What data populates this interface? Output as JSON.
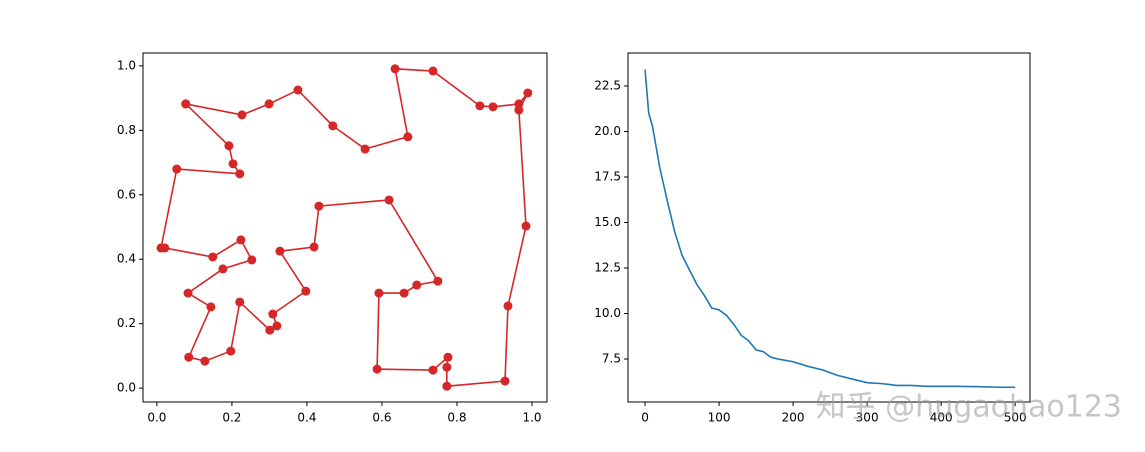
{
  "chart_data": [
    {
      "type": "line",
      "marker": true,
      "x": [
        0.077,
        0.227,
        0.299,
        0.376,
        0.469,
        0.555,
        0.669,
        0.635,
        0.736,
        0.861,
        0.896,
        0.965,
        0.989,
        0.965,
        0.984,
        0.936,
        0.928,
        0.773,
        0.773,
        0.776,
        0.736,
        0.587,
        0.592,
        0.659,
        0.693,
        0.749,
        0.619,
        0.432,
        0.419,
        0.328,
        0.397,
        0.309,
        0.32,
        0.301,
        0.221,
        0.197,
        0.128,
        0.085,
        0.144,
        0.083,
        0.176,
        0.253,
        0.224,
        0.149,
        0.021,
        0.011,
        0.053,
        0.221,
        0.203,
        0.192,
        0.077
      ],
      "series": [
        {
          "color": "#d62728",
          "values": [
            0.882,
            0.848,
            0.882,
            0.925,
            0.814,
            0.742,
            0.78,
            0.991,
            0.984,
            0.876,
            0.873,
            0.882,
            0.916,
            0.863,
            0.503,
            0.255,
            0.022,
            0.006,
            0.065,
            0.096,
            0.056,
            0.059,
            0.295,
            0.295,
            0.32,
            0.332,
            0.584,
            0.565,
            0.438,
            0.425,
            0.301,
            0.23,
            0.193,
            0.18,
            0.267,
            0.115,
            0.084,
            0.096,
            0.252,
            0.295,
            0.37,
            0.398,
            0.46,
            0.407,
            0.435,
            0.435,
            0.68,
            0.665,
            0.696,
            0.752,
            0.882
          ]
        }
      ],
      "xlim": [
        -0.037,
        1.04
      ],
      "ylim": [
        -0.043,
        1.04
      ],
      "xticks": [
        {
          "value": 0,
          "label": "0.0"
        },
        0.2,
        0.4,
        0.6,
        0.8,
        {
          "value": 1,
          "label": "1.0"
        }
      ],
      "yticks": [
        {
          "value": 0,
          "label": "0.0"
        },
        0.2,
        0.4,
        0.6,
        0.8,
        {
          "value": 1,
          "label": "1.0"
        }
      ]
    },
    {
      "type": "line",
      "marker": false,
      "x": [
        0,
        5,
        10,
        20,
        30,
        40,
        50,
        60,
        70,
        80,
        90,
        100,
        110,
        120,
        130,
        140,
        150,
        160,
        170,
        180,
        200,
        220,
        240,
        260,
        280,
        300,
        320,
        340,
        360,
        380,
        400,
        420,
        450,
        480,
        500
      ],
      "series": [
        {
          "color": "#1f77b4",
          "values": [
            23.4,
            21,
            20.3,
            18,
            16.2,
            14.5,
            13.2,
            12.4,
            11.6,
            11.0,
            10.3,
            10.2,
            9.9,
            9.4,
            8.8,
            8.5,
            8.0,
            7.9,
            7.6,
            7.5,
            7.35,
            7.1,
            6.9,
            6.6,
            6.4,
            6.2,
            6.15,
            6.05,
            6.05,
            6.0,
            6.0,
            6.0,
            5.98,
            5.95,
            5.95
          ]
        }
      ],
      "xlim": [
        -23,
        520
      ],
      "ylim": [
        5.14,
        24.31
      ],
      "xticks": [
        0,
        100,
        200,
        300,
        400,
        500
      ],
      "yticks": [
        7.5,
        {
          "value": 10,
          "label": "10.0"
        },
        12.5,
        {
          "value": 15,
          "label": "15.0"
        },
        17.5,
        {
          "value": 20,
          "label": "20.0"
        },
        22.5
      ]
    }
  ],
  "watermark": "知乎 @hugaohao123"
}
